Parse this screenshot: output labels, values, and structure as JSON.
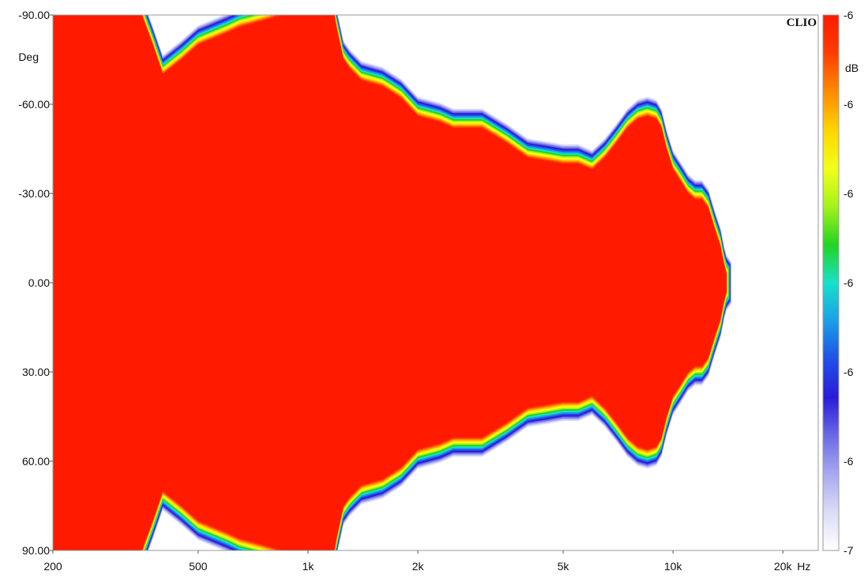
{
  "chart_data": {
    "type": "heatmap",
    "brand": "CLIO",
    "x_scale": "log",
    "xlim": [
      200,
      25000
    ],
    "ylim": [
      -90,
      90
    ],
    "x_unit": "Hz",
    "y_unit": "Deg",
    "x_ticks": [
      {
        "value": 200,
        "label": "200"
      },
      {
        "value": 500,
        "label": "500"
      },
      {
        "value": 1000,
        "label": "1k"
      },
      {
        "value": 2000,
        "label": "2k"
      },
      {
        "value": 5000,
        "label": "5k"
      },
      {
        "value": 10000,
        "label": "10k"
      },
      {
        "value": 20000,
        "label": "20k"
      }
    ],
    "y_ticks": [
      {
        "value": -90,
        "label": "-90.00"
      },
      {
        "value": -60,
        "label": "-60.00"
      },
      {
        "value": -30,
        "label": "-30.00"
      },
      {
        "value": 0,
        "label": "0.00"
      },
      {
        "value": 30,
        "label": "30.00"
      },
      {
        "value": 60,
        "label": "60.00"
      },
      {
        "value": 90,
        "label": "90.00"
      }
    ],
    "colorbar": {
      "unit": "dB",
      "labels": [
        "-6",
        "-6",
        "-6",
        "-6",
        "-6",
        "-6",
        "-7"
      ],
      "colors": [
        "#ff1a00",
        "#ff3d00",
        "#ff8a00",
        "#ffd400",
        "#f2ff1a",
        "#a6f21a",
        "#22d422",
        "#19e0c8",
        "#1aa0e8",
        "#2050e6",
        "#2a1ad9",
        "#6a6ae6",
        "#a8a8f0",
        "#dcdcf8",
        "#ffffff"
      ]
    },
    "region_edge_deg": {
      "freq_hz": [
        200,
        350,
        375,
        400,
        450,
        500,
        600,
        650,
        700,
        800,
        850,
        1180,
        1200,
        1250,
        1300,
        1400,
        1600,
        1800,
        2000,
        2300,
        2500,
        3000,
        3500,
        4000,
        4500,
        5000,
        5500,
        6000,
        6500,
        7000,
        7500,
        8000,
        8500,
        9000,
        9300,
        9600,
        10000,
        10500,
        11000,
        11500,
        12000,
        12500,
        13000,
        13500,
        13800,
        14000
      ],
      "edge": [
        90,
        90,
        80,
        70,
        75,
        80,
        84,
        86,
        87,
        89,
        90,
        90,
        85,
        75,
        72,
        68,
        66,
        62,
        56,
        54,
        52,
        52,
        47,
        42,
        41,
        40,
        40,
        38,
        42,
        47,
        52,
        55,
        56,
        55,
        52,
        45,
        38,
        34,
        30,
        28,
        28,
        25,
        18,
        12,
        6,
        3
      ]
    }
  }
}
